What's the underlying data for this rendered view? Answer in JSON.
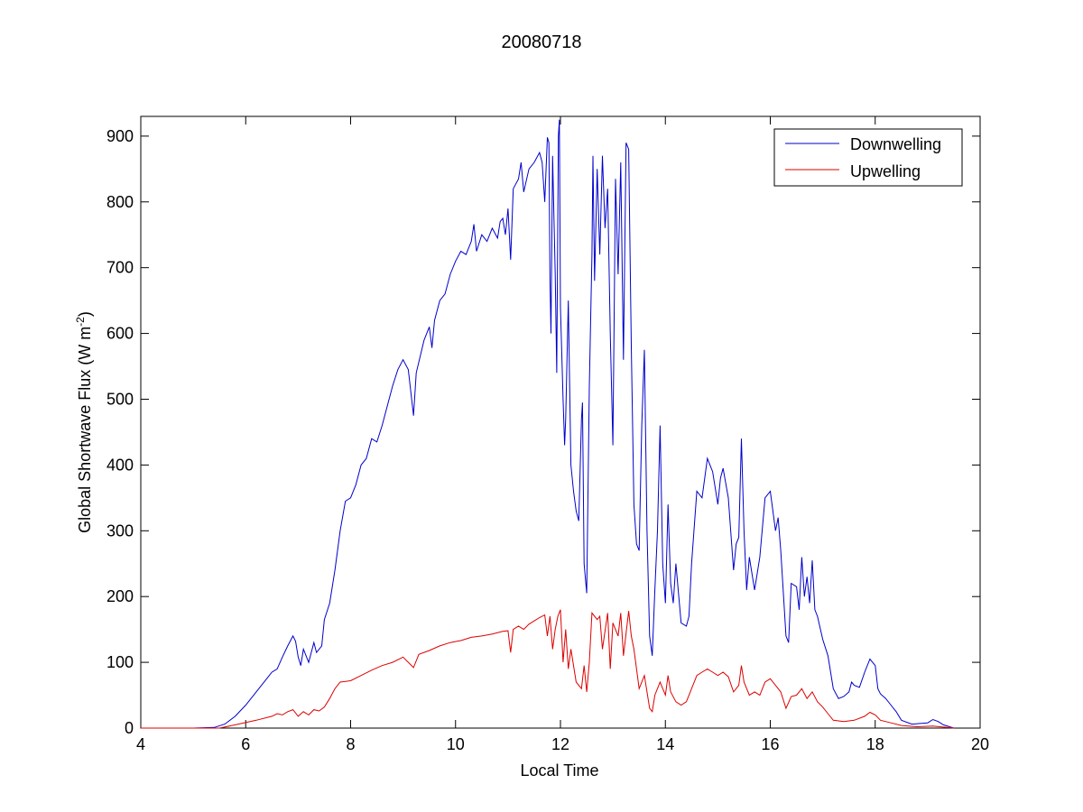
{
  "chart_data": {
    "type": "line",
    "title": "20080718",
    "xlabel": "Local Time",
    "ylabel": {
      "prefix": "Global Shortwave Flux (W m",
      "superscript": "-2",
      "suffix": ")"
    },
    "xlim": [
      4,
      20
    ],
    "ylim": [
      0,
      930
    ],
    "x_ticks": [
      4,
      6,
      8,
      10,
      12,
      14,
      16,
      18,
      20
    ],
    "y_ticks": [
      0,
      100,
      200,
      300,
      400,
      500,
      600,
      700,
      800,
      900
    ],
    "grid": false,
    "legend_position": "top-right",
    "series": [
      {
        "name": "Downwelling",
        "color": "#0000cc",
        "points": [
          [
            4.0,
            0
          ],
          [
            4.5,
            0
          ],
          [
            5.0,
            0
          ],
          [
            5.4,
            1
          ],
          [
            5.6,
            6
          ],
          [
            5.8,
            18
          ],
          [
            6.0,
            35
          ],
          [
            6.2,
            55
          ],
          [
            6.4,
            75
          ],
          [
            6.5,
            85
          ],
          [
            6.6,
            90
          ],
          [
            6.7,
            108
          ],
          [
            6.8,
            125
          ],
          [
            6.9,
            140
          ],
          [
            6.95,
            132
          ],
          [
            7.0,
            108
          ],
          [
            7.05,
            95
          ],
          [
            7.1,
            120
          ],
          [
            7.2,
            100
          ],
          [
            7.3,
            130
          ],
          [
            7.35,
            115
          ],
          [
            7.45,
            125
          ],
          [
            7.5,
            165
          ],
          [
            7.6,
            190
          ],
          [
            7.7,
            240
          ],
          [
            7.8,
            300
          ],
          [
            7.9,
            345
          ],
          [
            8.0,
            350
          ],
          [
            8.1,
            370
          ],
          [
            8.2,
            400
          ],
          [
            8.3,
            410
          ],
          [
            8.4,
            440
          ],
          [
            8.5,
            435
          ],
          [
            8.6,
            460
          ],
          [
            8.7,
            490
          ],
          [
            8.8,
            520
          ],
          [
            8.9,
            545
          ],
          [
            9.0,
            560
          ],
          [
            9.1,
            545
          ],
          [
            9.15,
            510
          ],
          [
            9.2,
            475
          ],
          [
            9.25,
            540
          ],
          [
            9.4,
            590
          ],
          [
            9.5,
            610
          ],
          [
            9.55,
            578
          ],
          [
            9.6,
            620
          ],
          [
            9.7,
            650
          ],
          [
            9.8,
            660
          ],
          [
            9.9,
            690
          ],
          [
            10.0,
            710
          ],
          [
            10.1,
            725
          ],
          [
            10.2,
            720
          ],
          [
            10.3,
            740
          ],
          [
            10.35,
            766
          ],
          [
            10.4,
            725
          ],
          [
            10.5,
            750
          ],
          [
            10.6,
            740
          ],
          [
            10.7,
            760
          ],
          [
            10.8,
            745
          ],
          [
            10.85,
            770
          ],
          [
            10.9,
            775
          ],
          [
            10.95,
            750
          ],
          [
            11.0,
            790
          ],
          [
            11.05,
            712
          ],
          [
            11.1,
            820
          ],
          [
            11.2,
            835
          ],
          [
            11.25,
            860
          ],
          [
            11.3,
            815
          ],
          [
            11.4,
            850
          ],
          [
            11.5,
            860
          ],
          [
            11.6,
            875
          ],
          [
            11.65,
            860
          ],
          [
            11.7,
            800
          ],
          [
            11.75,
            898
          ],
          [
            11.78,
            890
          ],
          [
            11.8,
            680
          ],
          [
            11.82,
            600
          ],
          [
            11.85,
            870
          ],
          [
            11.9,
            690
          ],
          [
            11.93,
            540
          ],
          [
            11.96,
            900
          ],
          [
            11.98,
            925
          ],
          [
            12.0,
            640
          ],
          [
            12.05,
            500
          ],
          [
            12.08,
            430
          ],
          [
            12.1,
            470
          ],
          [
            12.15,
            650
          ],
          [
            12.2,
            400
          ],
          [
            12.25,
            360
          ],
          [
            12.3,
            330
          ],
          [
            12.35,
            315
          ],
          [
            12.4,
            470
          ],
          [
            12.42,
            495
          ],
          [
            12.45,
            250
          ],
          [
            12.5,
            205
          ],
          [
            12.55,
            520
          ],
          [
            12.6,
            720
          ],
          [
            12.62,
            870
          ],
          [
            12.65,
            680
          ],
          [
            12.7,
            850
          ],
          [
            12.75,
            720
          ],
          [
            12.8,
            870
          ],
          [
            12.85,
            760
          ],
          [
            12.9,
            820
          ],
          [
            12.95,
            600
          ],
          [
            13.0,
            430
          ],
          [
            13.05,
            835
          ],
          [
            13.1,
            690
          ],
          [
            13.15,
            860
          ],
          [
            13.2,
            560
          ],
          [
            13.25,
            890
          ],
          [
            13.3,
            880
          ],
          [
            13.35,
            580
          ],
          [
            13.4,
            340
          ],
          [
            13.45,
            280
          ],
          [
            13.5,
            270
          ],
          [
            13.55,
            460
          ],
          [
            13.6,
            575
          ],
          [
            13.65,
            300
          ],
          [
            13.7,
            140
          ],
          [
            13.75,
            110
          ],
          [
            13.8,
            210
          ],
          [
            13.85,
            300
          ],
          [
            13.9,
            460
          ],
          [
            13.95,
            250
          ],
          [
            14.0,
            190
          ],
          [
            14.05,
            340
          ],
          [
            14.1,
            220
          ],
          [
            14.15,
            190
          ],
          [
            14.2,
            250
          ],
          [
            14.3,
            160
          ],
          [
            14.4,
            155
          ],
          [
            14.45,
            170
          ],
          [
            14.5,
            250
          ],
          [
            14.6,
            360
          ],
          [
            14.7,
            350
          ],
          [
            14.8,
            410
          ],
          [
            14.85,
            400
          ],
          [
            14.9,
            390
          ],
          [
            15.0,
            340
          ],
          [
            15.05,
            380
          ],
          [
            15.1,
            395
          ],
          [
            15.2,
            350
          ],
          [
            15.3,
            240
          ],
          [
            15.35,
            280
          ],
          [
            15.4,
            290
          ],
          [
            15.45,
            440
          ],
          [
            15.5,
            300
          ],
          [
            15.55,
            210
          ],
          [
            15.6,
            260
          ],
          [
            15.7,
            210
          ],
          [
            15.8,
            260
          ],
          [
            15.9,
            350
          ],
          [
            16.0,
            360
          ],
          [
            16.1,
            300
          ],
          [
            16.15,
            320
          ],
          [
            16.2,
            270
          ],
          [
            16.3,
            140
          ],
          [
            16.35,
            130
          ],
          [
            16.4,
            220
          ],
          [
            16.5,
            215
          ],
          [
            16.55,
            180
          ],
          [
            16.6,
            260
          ],
          [
            16.65,
            200
          ],
          [
            16.7,
            230
          ],
          [
            16.75,
            190
          ],
          [
            16.8,
            255
          ],
          [
            16.85,
            180
          ],
          [
            16.9,
            170
          ],
          [
            17.0,
            135
          ],
          [
            17.1,
            110
          ],
          [
            17.2,
            60
          ],
          [
            17.3,
            45
          ],
          [
            17.4,
            48
          ],
          [
            17.5,
            55
          ],
          [
            17.55,
            70
          ],
          [
            17.6,
            65
          ],
          [
            17.7,
            62
          ],
          [
            17.8,
            85
          ],
          [
            17.9,
            105
          ],
          [
            18.0,
            95
          ],
          [
            18.05,
            60
          ],
          [
            18.1,
            52
          ],
          [
            18.2,
            45
          ],
          [
            18.3,
            35
          ],
          [
            18.4,
            25
          ],
          [
            18.5,
            12
          ],
          [
            18.7,
            6
          ],
          [
            19.0,
            8
          ],
          [
            19.1,
            13
          ],
          [
            19.2,
            10
          ],
          [
            19.3,
            5
          ],
          [
            19.5,
            0
          ]
        ]
      },
      {
        "name": "Upwelling",
        "color": "#dd0000",
        "points": [
          [
            4.0,
            0
          ],
          [
            5.0,
            0
          ],
          [
            5.5,
            0
          ],
          [
            5.8,
            5
          ],
          [
            6.2,
            12
          ],
          [
            6.5,
            18
          ],
          [
            6.6,
            22
          ],
          [
            6.7,
            20
          ],
          [
            6.8,
            25
          ],
          [
            6.9,
            28
          ],
          [
            7.0,
            18
          ],
          [
            7.1,
            25
          ],
          [
            7.2,
            20
          ],
          [
            7.3,
            28
          ],
          [
            7.4,
            26
          ],
          [
            7.5,
            32
          ],
          [
            7.6,
            45
          ],
          [
            7.7,
            60
          ],
          [
            7.8,
            70
          ],
          [
            8.0,
            72
          ],
          [
            8.2,
            80
          ],
          [
            8.4,
            88
          ],
          [
            8.6,
            95
          ],
          [
            8.8,
            100
          ],
          [
            9.0,
            108
          ],
          [
            9.1,
            100
          ],
          [
            9.2,
            92
          ],
          [
            9.3,
            112
          ],
          [
            9.5,
            118
          ],
          [
            9.7,
            125
          ],
          [
            9.9,
            130
          ],
          [
            10.1,
            133
          ],
          [
            10.3,
            138
          ],
          [
            10.5,
            140
          ],
          [
            10.7,
            143
          ],
          [
            10.9,
            147
          ],
          [
            11.0,
            148
          ],
          [
            11.05,
            115
          ],
          [
            11.1,
            150
          ],
          [
            11.2,
            155
          ],
          [
            11.3,
            150
          ],
          [
            11.4,
            158
          ],
          [
            11.5,
            163
          ],
          [
            11.6,
            168
          ],
          [
            11.7,
            172
          ],
          [
            11.75,
            140
          ],
          [
            11.8,
            170
          ],
          [
            11.85,
            120
          ],
          [
            11.9,
            150
          ],
          [
            11.95,
            170
          ],
          [
            12.0,
            180
          ],
          [
            12.05,
            100
          ],
          [
            12.1,
            150
          ],
          [
            12.15,
            90
          ],
          [
            12.2,
            120
          ],
          [
            12.3,
            70
          ],
          [
            12.4,
            60
          ],
          [
            12.45,
            95
          ],
          [
            12.5,
            55
          ],
          [
            12.55,
            100
          ],
          [
            12.6,
            175
          ],
          [
            12.7,
            165
          ],
          [
            12.75,
            170
          ],
          [
            12.8,
            120
          ],
          [
            12.9,
            175
          ],
          [
            12.95,
            90
          ],
          [
            13.0,
            160
          ],
          [
            13.1,
            140
          ],
          [
            13.15,
            175
          ],
          [
            13.2,
            110
          ],
          [
            13.3,
            178
          ],
          [
            13.35,
            140
          ],
          [
            13.4,
            120
          ],
          [
            13.5,
            60
          ],
          [
            13.6,
            80
          ],
          [
            13.7,
            30
          ],
          [
            13.75,
            25
          ],
          [
            13.8,
            50
          ],
          [
            13.9,
            70
          ],
          [
            14.0,
            50
          ],
          [
            14.05,
            80
          ],
          [
            14.1,
            55
          ],
          [
            14.2,
            40
          ],
          [
            14.3,
            35
          ],
          [
            14.4,
            40
          ],
          [
            14.5,
            60
          ],
          [
            14.6,
            80
          ],
          [
            14.7,
            85
          ],
          [
            14.8,
            90
          ],
          [
            14.9,
            85
          ],
          [
            15.0,
            80
          ],
          [
            15.1,
            85
          ],
          [
            15.2,
            78
          ],
          [
            15.3,
            55
          ],
          [
            15.4,
            65
          ],
          [
            15.45,
            95
          ],
          [
            15.5,
            70
          ],
          [
            15.6,
            50
          ],
          [
            15.7,
            55
          ],
          [
            15.8,
            50
          ],
          [
            15.9,
            70
          ],
          [
            16.0,
            75
          ],
          [
            16.1,
            65
          ],
          [
            16.2,
            55
          ],
          [
            16.3,
            30
          ],
          [
            16.4,
            48
          ],
          [
            16.5,
            50
          ],
          [
            16.6,
            60
          ],
          [
            16.7,
            45
          ],
          [
            16.8,
            55
          ],
          [
            16.9,
            40
          ],
          [
            17.0,
            32
          ],
          [
            17.1,
            22
          ],
          [
            17.2,
            12
          ],
          [
            17.4,
            10
          ],
          [
            17.6,
            12
          ],
          [
            17.8,
            18
          ],
          [
            17.9,
            24
          ],
          [
            18.0,
            20
          ],
          [
            18.1,
            12
          ],
          [
            18.3,
            8
          ],
          [
            18.5,
            4
          ],
          [
            18.8,
            2
          ],
          [
            19.1,
            3
          ],
          [
            19.5,
            0
          ]
        ]
      }
    ]
  }
}
